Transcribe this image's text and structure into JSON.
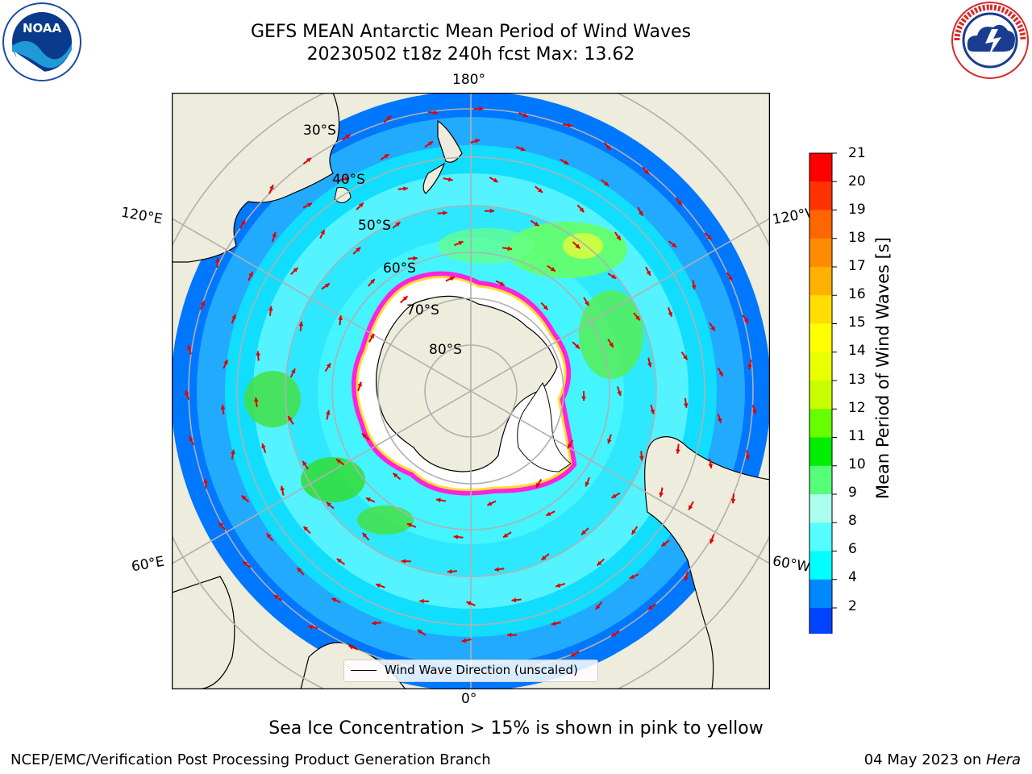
{
  "header": {
    "title_line1": "GEFS MEAN Antarctic Mean Period of Wind Waves",
    "title_line2": "20230502 t18z 240h fcst   Max: 13.62"
  },
  "logos": {
    "left": "noara-logo",
    "left_text": "NOAA",
    "right": "nws-logo",
    "right_text": "NATIONAL WEATHER SERVICE"
  },
  "map": {
    "lon_labels": {
      "top": "180°",
      "bottom": "0°",
      "left_upper": "120°E",
      "left_lower": "60°E",
      "right_upper": "120°W",
      "right_lower": "60°W"
    },
    "lat_labels": [
      "30°S",
      "40°S",
      "50°S",
      "60°S",
      "70°S",
      "80°S"
    ],
    "legend_label": "Wind Wave Direction (unscaled)"
  },
  "colorbar": {
    "title": "Mean Period of Wind Waves [s]",
    "ticks": [
      "21",
      "20",
      "19",
      "18",
      "17",
      "16",
      "15",
      "14",
      "13",
      "12",
      "11",
      "10",
      "9",
      "8",
      "6",
      "4",
      "2"
    ],
    "colors": [
      "#ff0000",
      "#ff3300",
      "#ff6600",
      "#ff8c00",
      "#ffb000",
      "#ffdd00",
      "#ffff00",
      "#eaff00",
      "#c8ff00",
      "#66ff00",
      "#00ee00",
      "#55ff77",
      "#aaffee",
      "#55ffff",
      "#00ffff",
      "#0088ff",
      "#0044ff"
    ],
    "under_color": "#0000ff"
  },
  "notes": {
    "sea_ice": "Sea Ice Concentration > 15% is shown in pink to yellow"
  },
  "footer": {
    "left": "NCEP/EMC/Verification Post Processing Product Generation Branch",
    "right_date": "04 May 2023 on ",
    "right_machine": "Hera"
  }
}
